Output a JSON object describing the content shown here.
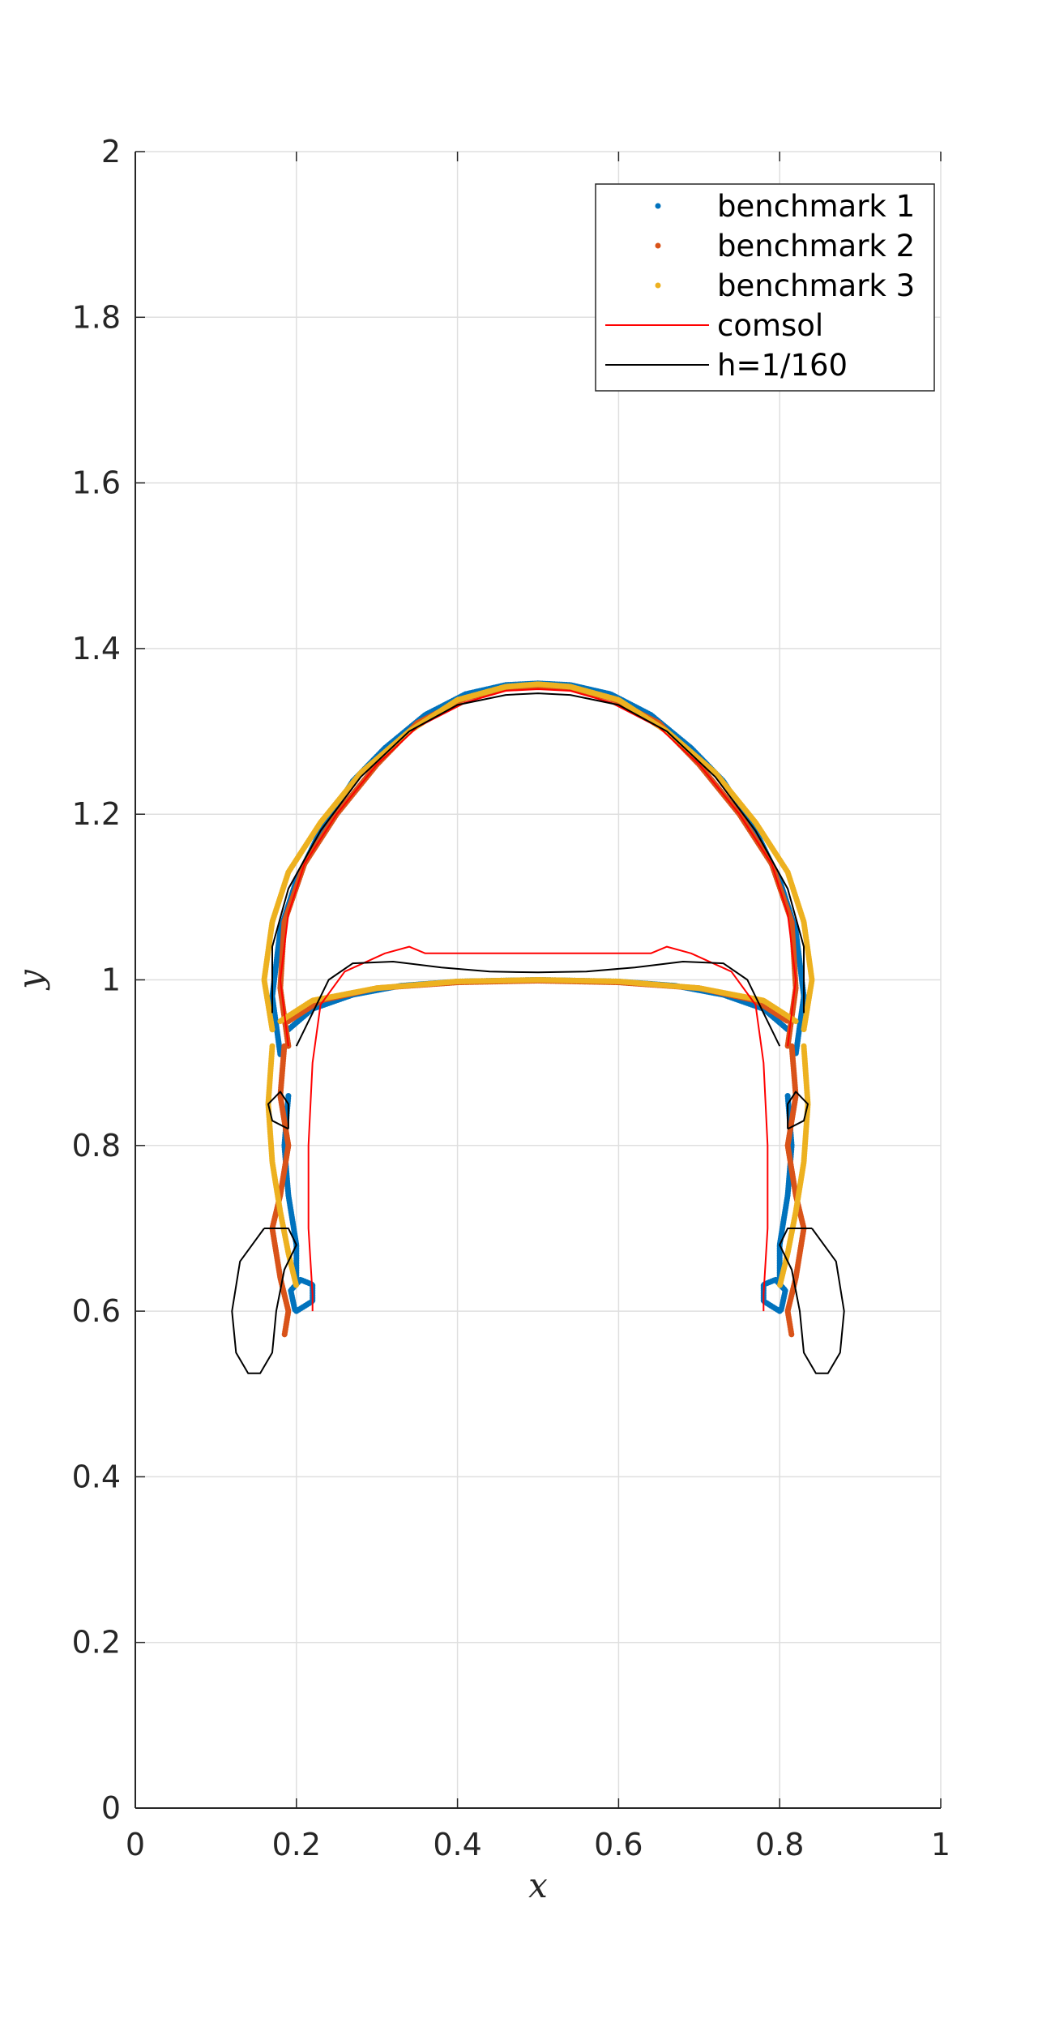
{
  "chart_data": {
    "type": "line",
    "title": "",
    "xlabel": "x",
    "ylabel": "y",
    "xlim": [
      0,
      1
    ],
    "ylim": [
      0,
      2
    ],
    "xticks": [
      "0",
      "0.2",
      "0.4",
      "0.6",
      "0.8",
      "1"
    ],
    "yticks": [
      "0",
      "0.2",
      "0.4",
      "0.6",
      "0.8",
      "1",
      "1.2",
      "1.4",
      "1.6",
      "1.8",
      "2"
    ],
    "grid": true,
    "legend_position": "top-right",
    "series": [
      {
        "name": "benchmark 1",
        "color": "#0072BD",
        "style": "dots",
        "segments": [
          [
            [
              0.18,
              0.91
            ],
            [
              0.17,
              0.98
            ],
            [
              0.18,
              1.06
            ],
            [
              0.2,
              1.12
            ],
            [
              0.23,
              1.18
            ],
            [
              0.27,
              1.24
            ],
            [
              0.31,
              1.28
            ],
            [
              0.36,
              1.32
            ],
            [
              0.41,
              1.345
            ],
            [
              0.46,
              1.356
            ],
            [
              0.5,
              1.358
            ],
            [
              0.54,
              1.356
            ],
            [
              0.59,
              1.345
            ],
            [
              0.64,
              1.32
            ],
            [
              0.69,
              1.28
            ],
            [
              0.73,
              1.24
            ],
            [
              0.77,
              1.18
            ],
            [
              0.8,
              1.12
            ],
            [
              0.82,
              1.06
            ],
            [
              0.83,
              0.98
            ],
            [
              0.82,
              0.91
            ]
          ],
          [
            [
              0.19,
              0.94
            ],
            [
              0.22,
              0.965
            ],
            [
              0.27,
              0.982
            ],
            [
              0.33,
              0.993
            ],
            [
              0.4,
              0.998
            ],
            [
              0.5,
              1.0
            ],
            [
              0.6,
              0.998
            ],
            [
              0.67,
              0.993
            ],
            [
              0.73,
              0.982
            ],
            [
              0.78,
              0.965
            ],
            [
              0.81,
              0.94
            ]
          ],
          [
            [
              0.19,
              0.86
            ],
            [
              0.185,
              0.8
            ],
            [
              0.19,
              0.74
            ],
            [
              0.2,
              0.68
            ],
            [
              0.2,
              0.64
            ]
          ],
          [
            [
              0.81,
              0.86
            ],
            [
              0.815,
              0.8
            ],
            [
              0.81,
              0.74
            ],
            [
              0.8,
              0.68
            ],
            [
              0.8,
              0.64
            ]
          ],
          [
            [
              0.2,
              0.6
            ],
            [
              0.22,
              0.612
            ],
            [
              0.22,
              0.632
            ],
            [
              0.205,
              0.638
            ],
            [
              0.193,
              0.625
            ],
            [
              0.198,
              0.602
            ],
            [
              0.2,
              0.6
            ]
          ],
          [
            [
              0.8,
              0.6
            ],
            [
              0.78,
              0.612
            ],
            [
              0.78,
              0.632
            ],
            [
              0.795,
              0.638
            ],
            [
              0.807,
              0.625
            ],
            [
              0.802,
              0.602
            ],
            [
              0.8,
              0.6
            ]
          ]
        ]
      },
      {
        "name": "benchmark 2",
        "color": "#D95319",
        "style": "dots",
        "segments": [
          [
            [
              0.19,
              0.92
            ],
            [
              0.18,
              0.99
            ],
            [
              0.185,
              1.07
            ],
            [
              0.21,
              1.14
            ],
            [
              0.25,
              1.2
            ],
            [
              0.3,
              1.26
            ],
            [
              0.35,
              1.31
            ],
            [
              0.41,
              1.34
            ],
            [
              0.46,
              1.352
            ],
            [
              0.5,
              1.354
            ],
            [
              0.54,
              1.352
            ],
            [
              0.59,
              1.34
            ],
            [
              0.65,
              1.31
            ],
            [
              0.7,
              1.26
            ],
            [
              0.75,
              1.2
            ],
            [
              0.79,
              1.14
            ],
            [
              0.815,
              1.07
            ],
            [
              0.82,
              0.99
            ],
            [
              0.81,
              0.92
            ]
          ],
          [
            [
              0.19,
              0.95
            ],
            [
              0.23,
              0.975
            ],
            [
              0.3,
              0.99
            ],
            [
              0.4,
              0.997
            ],
            [
              0.5,
              0.999
            ],
            [
              0.6,
              0.997
            ],
            [
              0.7,
              0.99
            ],
            [
              0.77,
              0.975
            ],
            [
              0.81,
              0.95
            ]
          ],
          [
            [
              0.185,
              0.92
            ],
            [
              0.18,
              0.86
            ],
            [
              0.19,
              0.8
            ],
            [
              0.18,
              0.74
            ],
            [
              0.17,
              0.7
            ],
            [
              0.18,
              0.64
            ],
            [
              0.19,
              0.6
            ],
            [
              0.185,
              0.57
            ]
          ],
          [
            [
              0.815,
              0.92
            ],
            [
              0.82,
              0.86
            ],
            [
              0.81,
              0.8
            ],
            [
              0.82,
              0.74
            ],
            [
              0.83,
              0.7
            ],
            [
              0.82,
              0.64
            ],
            [
              0.81,
              0.6
            ],
            [
              0.815,
              0.57
            ]
          ]
        ]
      },
      {
        "name": "benchmark 3",
        "color": "#EDB120",
        "style": "dots",
        "segments": [
          [
            [
              0.17,
              0.94
            ],
            [
              0.16,
              1.0
            ],
            [
              0.17,
              1.07
            ],
            [
              0.19,
              1.13
            ],
            [
              0.23,
              1.19
            ],
            [
              0.28,
              1.25
            ],
            [
              0.34,
              1.3
            ],
            [
              0.4,
              1.338
            ],
            [
              0.46,
              1.354
            ],
            [
              0.5,
              1.357
            ],
            [
              0.54,
              1.354
            ],
            [
              0.6,
              1.338
            ],
            [
              0.66,
              1.3
            ],
            [
              0.72,
              1.25
            ],
            [
              0.77,
              1.19
            ],
            [
              0.81,
              1.13
            ],
            [
              0.83,
              1.07
            ],
            [
              0.84,
              1.0
            ],
            [
              0.83,
              0.94
            ]
          ],
          [
            [
              0.18,
              0.95
            ],
            [
              0.22,
              0.975
            ],
            [
              0.3,
              0.99
            ],
            [
              0.4,
              0.998
            ],
            [
              0.5,
              1.0
            ],
            [
              0.6,
              0.998
            ],
            [
              0.7,
              0.99
            ],
            [
              0.78,
              0.975
            ],
            [
              0.82,
              0.95
            ]
          ],
          [
            [
              0.17,
              0.92
            ],
            [
              0.165,
              0.85
            ],
            [
              0.17,
              0.78
            ],
            [
              0.18,
              0.72
            ],
            [
              0.19,
              0.67
            ],
            [
              0.2,
              0.63
            ]
          ],
          [
            [
              0.83,
              0.92
            ],
            [
              0.835,
              0.85
            ],
            [
              0.83,
              0.78
            ],
            [
              0.82,
              0.72
            ],
            [
              0.81,
              0.67
            ],
            [
              0.8,
              0.63
            ]
          ]
        ]
      },
      {
        "name": "comsol",
        "color": "#FF0000",
        "style": "line",
        "segments": [
          [
            [
              0.19,
              0.92
            ],
            [
              0.18,
              1.0
            ],
            [
              0.19,
              1.08
            ],
            [
              0.21,
              1.14
            ],
            [
              0.25,
              1.2
            ],
            [
              0.3,
              1.26
            ],
            [
              0.35,
              1.305
            ],
            [
              0.41,
              1.335
            ],
            [
              0.46,
              1.349
            ],
            [
              0.5,
              1.351
            ],
            [
              0.54,
              1.349
            ],
            [
              0.59,
              1.335
            ],
            [
              0.65,
              1.305
            ],
            [
              0.7,
              1.26
            ],
            [
              0.75,
              1.2
            ],
            [
              0.79,
              1.14
            ],
            [
              0.81,
              1.08
            ],
            [
              0.82,
              1.0
            ],
            [
              0.81,
              0.92
            ]
          ],
          [
            [
              0.22,
              0.6
            ],
            [
              0.22,
              0.62
            ],
            [
              0.215,
              0.7
            ],
            [
              0.215,
              0.8
            ],
            [
              0.22,
              0.9
            ],
            [
              0.23,
              0.97
            ],
            [
              0.26,
              1.01
            ],
            [
              0.31,
              1.032
            ],
            [
              0.34,
              1.04
            ],
            [
              0.36,
              1.032
            ],
            [
              0.5,
              1.032
            ],
            [
              0.64,
              1.032
            ],
            [
              0.66,
              1.04
            ],
            [
              0.69,
              1.032
            ],
            [
              0.74,
              1.01
            ],
            [
              0.77,
              0.97
            ],
            [
              0.78,
              0.9
            ],
            [
              0.785,
              0.8
            ],
            [
              0.785,
              0.7
            ],
            [
              0.78,
              0.62
            ],
            [
              0.78,
              0.6
            ]
          ]
        ]
      },
      {
        "name": "h=1/160",
        "color": "#000000",
        "style": "line",
        "segments": [
          [
            [
              0.17,
              0.96
            ],
            [
              0.17,
              1.04
            ],
            [
              0.19,
              1.11
            ],
            [
              0.23,
              1.18
            ],
            [
              0.28,
              1.245
            ],
            [
              0.34,
              1.3
            ],
            [
              0.4,
              1.332
            ],
            [
              0.46,
              1.344
            ],
            [
              0.5,
              1.346
            ],
            [
              0.54,
              1.344
            ],
            [
              0.6,
              1.332
            ],
            [
              0.66,
              1.3
            ],
            [
              0.72,
              1.245
            ],
            [
              0.77,
              1.18
            ],
            [
              0.81,
              1.11
            ],
            [
              0.83,
              1.04
            ],
            [
              0.83,
              0.96
            ]
          ],
          [
            [
              0.2,
              0.92
            ],
            [
              0.22,
              0.96
            ],
            [
              0.24,
              1.0
            ],
            [
              0.27,
              1.02
            ],
            [
              0.32,
              1.022
            ],
            [
              0.38,
              1.015
            ],
            [
              0.44,
              1.01
            ],
            [
              0.5,
              1.009
            ],
            [
              0.56,
              1.01
            ],
            [
              0.62,
              1.015
            ],
            [
              0.68,
              1.022
            ],
            [
              0.73,
              1.02
            ],
            [
              0.76,
              1.0
            ],
            [
              0.78,
              0.96
            ],
            [
              0.8,
              0.92
            ]
          ],
          [
            [
              0.16,
              0.7
            ],
            [
              0.13,
              0.66
            ],
            [
              0.12,
              0.6
            ],
            [
              0.125,
              0.55
            ],
            [
              0.14,
              0.525
            ],
            [
              0.155,
              0.525
            ],
            [
              0.17,
              0.55
            ],
            [
              0.175,
              0.6
            ],
            [
              0.185,
              0.65
            ],
            [
              0.2,
              0.68
            ],
            [
              0.19,
              0.7
            ],
            [
              0.16,
              0.7
            ]
          ],
          [
            [
              0.84,
              0.7
            ],
            [
              0.87,
              0.66
            ],
            [
              0.88,
              0.6
            ],
            [
              0.875,
              0.55
            ],
            [
              0.86,
              0.525
            ],
            [
              0.845,
              0.525
            ],
            [
              0.83,
              0.55
            ],
            [
              0.825,
              0.6
            ],
            [
              0.815,
              0.65
            ],
            [
              0.8,
              0.68
            ],
            [
              0.81,
              0.7
            ],
            [
              0.84,
              0.7
            ]
          ],
          [
            [
              0.19,
              0.82
            ],
            [
              0.17,
              0.83
            ],
            [
              0.165,
              0.85
            ],
            [
              0.18,
              0.865
            ],
            [
              0.19,
              0.85
            ],
            [
              0.19,
              0.82
            ]
          ],
          [
            [
              0.81,
              0.82
            ],
            [
              0.83,
              0.83
            ],
            [
              0.835,
              0.85
            ],
            [
              0.82,
              0.865
            ],
            [
              0.81,
              0.85
            ],
            [
              0.81,
              0.82
            ]
          ]
        ]
      }
    ]
  }
}
